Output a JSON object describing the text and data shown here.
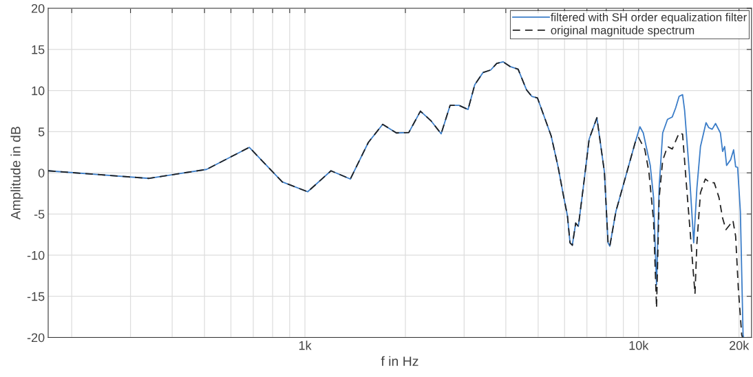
{
  "chart_data": {
    "type": "line",
    "xlabel": "f in Hz",
    "ylabel": "Amplitude in dB",
    "log": "x",
    "xlim": [
      170,
      21800
    ],
    "ylim": [
      -20,
      20
    ],
    "xticks": [
      {
        "value": 200,
        "label": null
      },
      {
        "value": 300,
        "label": null
      },
      {
        "value": 400,
        "label": null
      },
      {
        "value": 500,
        "label": null
      },
      {
        "value": 600,
        "label": null
      },
      {
        "value": 700,
        "label": null
      },
      {
        "value": 800,
        "label": null
      },
      {
        "value": 900,
        "label": null
      },
      {
        "value": 1000,
        "label": "1k"
      },
      {
        "value": 2000,
        "label": null
      },
      {
        "value": 3000,
        "label": null
      },
      {
        "value": 4000,
        "label": null
      },
      {
        "value": 5000,
        "label": null
      },
      {
        "value": 6000,
        "label": null
      },
      {
        "value": 7000,
        "label": null
      },
      {
        "value": 8000,
        "label": null
      },
      {
        "value": 9000,
        "label": null
      },
      {
        "value": 10000,
        "label": "10k"
      },
      {
        "value": 20000,
        "label": "20k"
      }
    ],
    "yticks": [
      -20,
      -15,
      -10,
      -5,
      0,
      5,
      10,
      15,
      20
    ],
    "grid": true,
    "legend": "top right",
    "series": [
      {
        "name": "filtered with SH order equalization filter",
        "color": "#3b7dc8",
        "line_style": "solid",
        "x": [
          170,
          340,
          507,
          681,
          855,
          1019,
          1197,
          1368,
          1549,
          1710,
          1880,
          2048,
          2219,
          2384,
          2560,
          2723,
          2897,
          3082,
          3228,
          3420,
          3604,
          3758,
          3926,
          4130,
          4355,
          4613,
          4786,
          4977,
          5470,
          5740,
          5950,
          6120,
          6230,
          6330,
          6480,
          6600,
          6850,
          7110,
          7500,
          7900,
          8100,
          8200,
          8550,
          9770,
          10093,
          10330,
          10840,
          11090,
          11320,
          11530,
          11810,
          12210,
          12620,
          12920,
          13230,
          13550,
          13740,
          14210,
          14630,
          14960,
          15330,
          15930,
          16230,
          16620,
          17010,
          17590,
          17860,
          18110,
          18360,
          18880,
          19270,
          19540,
          19810,
          20190,
          20570,
          20650
        ],
        "values": [
          0.25,
          -0.67,
          0.42,
          3.1,
          -1.1,
          -2.3,
          0.25,
          -0.75,
          3.7,
          5.9,
          4.85,
          4.9,
          7.5,
          6.35,
          4.75,
          8.2,
          8.2,
          7.7,
          10.7,
          12.2,
          12.5,
          13.3,
          13.5,
          12.9,
          12.6,
          10.1,
          9.3,
          9.1,
          4.5,
          0.7,
          -2.7,
          -5.2,
          -8.5,
          -8.8,
          -6.1,
          -6.5,
          -1.3,
          4.1,
          6.7,
          0.1,
          -8.5,
          -8.9,
          -4.7,
          3.7,
          5.6,
          4.85,
          0.9,
          -3.0,
          -13.6,
          -1.6,
          4.85,
          6.5,
          6.8,
          7.9,
          9.3,
          9.5,
          7.6,
          -0.2,
          -8.5,
          -1.8,
          3.2,
          6.1,
          5.5,
          5.3,
          6.0,
          4.85,
          2.6,
          3.2,
          0.9,
          1.6,
          2.8,
          0.75,
          0.67,
          -4.7,
          -19.7,
          -20
        ]
      },
      {
        "name": "original magnitude spectrum",
        "color": "#222222",
        "line_style": "dashed",
        "x": [
          170,
          340,
          507,
          681,
          855,
          1019,
          1197,
          1368,
          1549,
          1710,
          1880,
          2048,
          2219,
          2384,
          2560,
          2723,
          2897,
          3082,
          3228,
          3420,
          3604,
          3758,
          3926,
          4130,
          4355,
          4613,
          4786,
          4977,
          5470,
          5740,
          5950,
          6120,
          6230,
          6330,
          6480,
          6600,
          6850,
          7110,
          7500,
          7900,
          8100,
          8200,
          8550,
          9770,
          10000,
          10440,
          10740,
          11090,
          11320,
          11530,
          11810,
          12210,
          12620,
          13230,
          13550,
          13870,
          14280,
          14760,
          14960,
          15330,
          15850,
          16380,
          16860,
          17420,
          17860,
          18280,
          18700,
          19180,
          19540,
          19910,
          20380,
          20500
        ],
        "values": [
          0.25,
          -0.67,
          0.42,
          3.1,
          -1.1,
          -2.3,
          0.25,
          -0.75,
          3.7,
          5.9,
          4.85,
          4.9,
          7.5,
          6.35,
          4.75,
          8.2,
          8.2,
          7.7,
          10.7,
          12.2,
          12.5,
          13.3,
          13.5,
          12.9,
          12.6,
          10.1,
          9.3,
          9.1,
          4.5,
          0.7,
          -2.7,
          -5.2,
          -8.5,
          -8.8,
          -6.1,
          -6.5,
          -1.3,
          4.1,
          6.7,
          0.1,
          -8.5,
          -8.9,
          -4.7,
          3.7,
          4.3,
          2.85,
          0.1,
          -5.8,
          -16.4,
          -3.0,
          1.5,
          3.2,
          2.9,
          4.85,
          4.7,
          -0.75,
          -7.2,
          -14.7,
          -8.5,
          -2.4,
          -0.75,
          -1.2,
          -1.2,
          -3.0,
          -5.5,
          -6.9,
          -6.4,
          -5.8,
          -7.7,
          -14.1,
          -19.7,
          -20
        ]
      }
    ]
  }
}
